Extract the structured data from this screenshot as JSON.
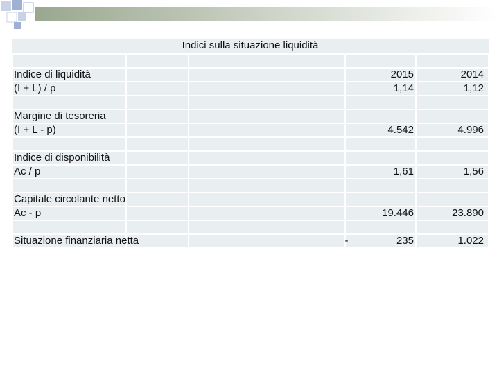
{
  "table": {
    "title": "Indici sulla situazione liquidità",
    "years": [
      "2015",
      "2014"
    ],
    "rows": [
      {
        "label": "Indice di liquidità",
        "formula": "(I + L) / p",
        "values": [
          "1,14",
          "1,12"
        ]
      },
      {
        "label": "Margine di tesoreria",
        "formula": "(I + L - p)",
        "values": [
          "4.542",
          "4.996"
        ]
      },
      {
        "label": "Indice di disponibilità",
        "formula": "Ac / p",
        "values": [
          "1,61",
          "1,56"
        ]
      },
      {
        "label": "Capitale circolante netto",
        "formula": "Ac - p",
        "values": [
          "19.446",
          "23.890"
        ]
      },
      {
        "label": "Situazione finanziaria netta",
        "sign": "-",
        "values": [
          "235",
          "1.022"
        ]
      }
    ]
  }
}
